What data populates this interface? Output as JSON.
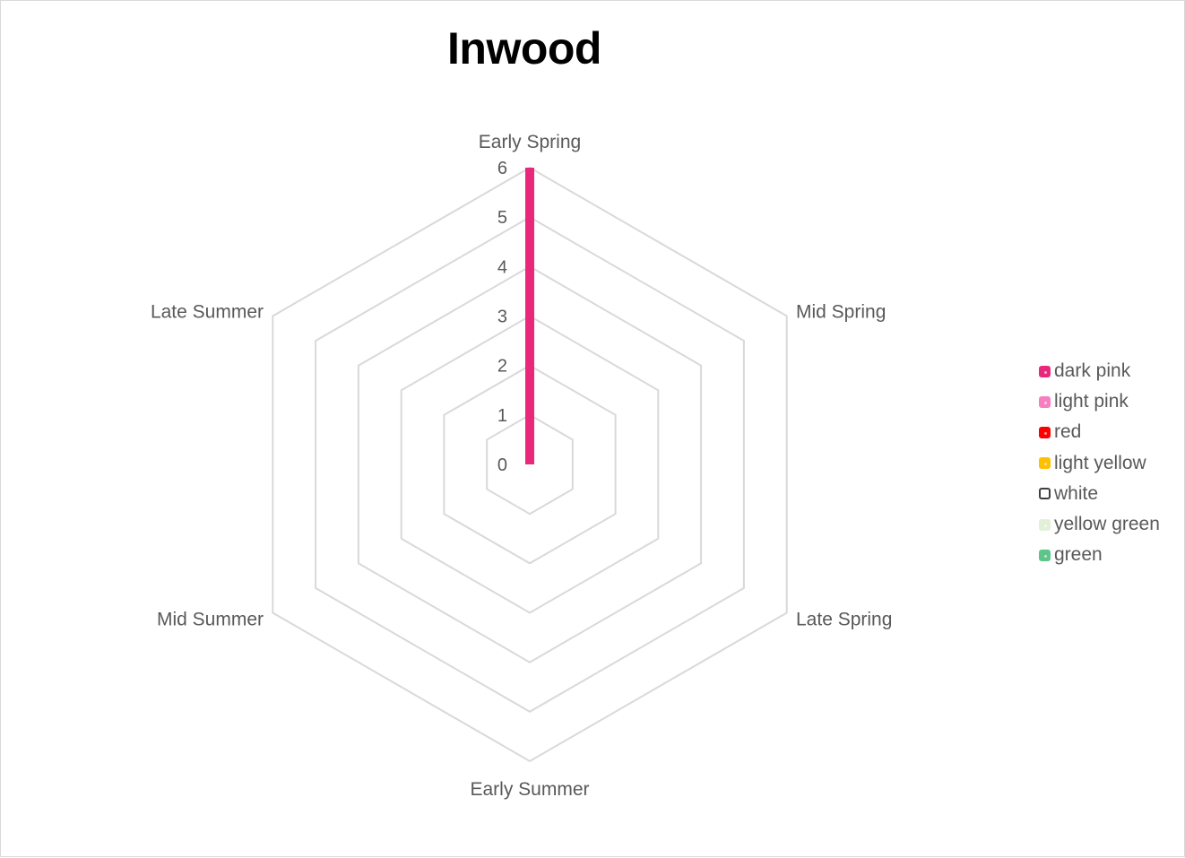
{
  "chart_data": {
    "type": "radar",
    "title": "Inwood",
    "categories": [
      "Early Spring",
      "Mid Spring",
      "Late Spring",
      "Early Summer",
      "Mid Summer",
      "Late Summer"
    ],
    "rlim": [
      0,
      6
    ],
    "rticks": [
      0,
      1,
      2,
      3,
      4,
      5,
      6
    ],
    "grid": true,
    "legend_position": "right",
    "series": [
      {
        "name": "dark pink",
        "color": "#e8297b",
        "values": [
          6,
          0,
          0,
          0,
          0,
          0
        ]
      },
      {
        "name": "light pink",
        "color": "#f77fc0",
        "values": [
          0,
          0,
          0,
          0,
          0,
          0
        ]
      },
      {
        "name": "red",
        "color": "#ff0000",
        "values": [
          0,
          0,
          0,
          0,
          0,
          0
        ]
      },
      {
        "name": "light yellow",
        "color": "#ffc000",
        "values": [
          0,
          0,
          0,
          0,
          0,
          0
        ]
      },
      {
        "name": "white",
        "color": "#ffffff",
        "values": [
          0,
          0,
          0,
          0,
          0,
          0
        ]
      },
      {
        "name": "yellow green",
        "color": "#e2f0d9",
        "values": [
          0,
          0,
          0,
          0,
          0,
          0
        ]
      },
      {
        "name": "green",
        "color": "#5ec58a",
        "values": [
          0,
          0,
          0,
          0,
          0,
          0
        ]
      }
    ]
  }
}
